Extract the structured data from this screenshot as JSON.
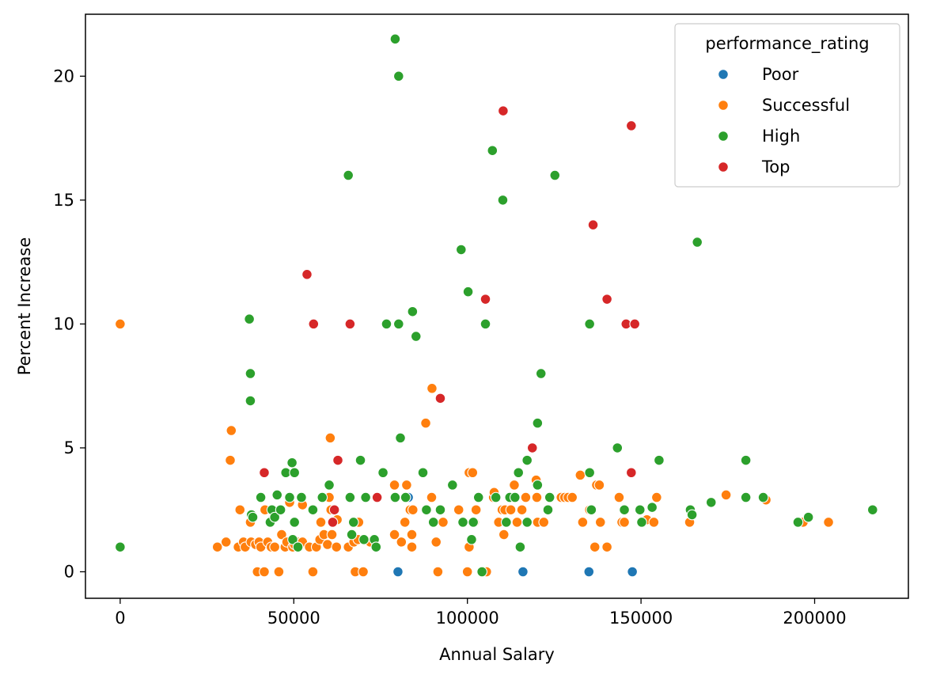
{
  "chart_data": {
    "type": "scatter",
    "title": "",
    "xlabel": "Annual Salary",
    "ylabel": "Percent Increase",
    "xlim": [
      -10000,
      227000
    ],
    "ylim": [
      -1.07,
      22.5
    ],
    "xticks": [
      0,
      50000,
      100000,
      150000,
      200000
    ],
    "yticks": [
      0,
      5,
      10,
      15,
      20
    ],
    "grid": false,
    "legend": {
      "title": "performance_rating",
      "placement": "top-right"
    },
    "series": [
      {
        "name": "Poor",
        "color": "#1f77b4",
        "points": [
          [
            80000,
            0
          ],
          [
            83000,
            3
          ],
          [
            116000,
            0
          ],
          [
            135000,
            0
          ],
          [
            147500,
            0
          ]
        ]
      },
      {
        "name": "Successful",
        "color": "#ff7f0e",
        "points": [
          [
            0,
            10
          ],
          [
            28000,
            1
          ],
          [
            30500,
            1.2
          ],
          [
            32000,
            5.7
          ],
          [
            31700,
            4.5
          ],
          [
            34500,
            2.5
          ],
          [
            34000,
            1
          ],
          [
            35500,
            1.2
          ],
          [
            36000,
            1
          ],
          [
            37500,
            2
          ],
          [
            37700,
            1.2
          ],
          [
            39000,
            1.1
          ],
          [
            39500,
            0
          ],
          [
            40000,
            1.2
          ],
          [
            40500,
            1
          ],
          [
            41500,
            0
          ],
          [
            41700,
            2.5
          ],
          [
            42500,
            1.2
          ],
          [
            43500,
            1
          ],
          [
            44500,
            1
          ],
          [
            45700,
            0
          ],
          [
            46500,
            1.5
          ],
          [
            47500,
            1
          ],
          [
            48000,
            1.2
          ],
          [
            48800,
            2.8
          ],
          [
            49700,
            1
          ],
          [
            50200,
            1.1
          ],
          [
            51000,
            1.2
          ],
          [
            52500,
            1.2
          ],
          [
            52500,
            2.7
          ],
          [
            54500,
            1
          ],
          [
            55500,
            0
          ],
          [
            56500,
            1
          ],
          [
            57500,
            1.3
          ],
          [
            57800,
            2
          ],
          [
            58700,
            1.5
          ],
          [
            59700,
            1.1
          ],
          [
            60200,
            3
          ],
          [
            60500,
            5.4
          ],
          [
            60700,
            2.5
          ],
          [
            61000,
            1.5
          ],
          [
            62300,
            1
          ],
          [
            62500,
            2.1
          ],
          [
            65700,
            1
          ],
          [
            67300,
            1.2
          ],
          [
            67700,
            0
          ],
          [
            68500,
            1.3
          ],
          [
            68700,
            2
          ],
          [
            70000,
            0
          ],
          [
            72000,
            1.2
          ],
          [
            79000,
            3.5
          ],
          [
            79000,
            1.5
          ],
          [
            81000,
            1.2
          ],
          [
            82000,
            2
          ],
          [
            82500,
            3.5
          ],
          [
            83500,
            2.5
          ],
          [
            84000,
            1.5
          ],
          [
            84300,
            2.5
          ],
          [
            84000,
            1
          ],
          [
            88000,
            6
          ],
          [
            89700,
            3
          ],
          [
            89800,
            7.4
          ],
          [
            91000,
            1.2
          ],
          [
            91500,
            0
          ],
          [
            93000,
            2
          ],
          [
            97500,
            2.5
          ],
          [
            100000,
            0
          ],
          [
            100500,
            1
          ],
          [
            100500,
            4
          ],
          [
            101500,
            4
          ],
          [
            102000,
            2
          ],
          [
            102500,
            2.5
          ],
          [
            104500,
            0
          ],
          [
            105500,
            0
          ],
          [
            107500,
            3
          ],
          [
            107700,
            3.2
          ],
          [
            109000,
            2
          ],
          [
            110000,
            2.5
          ],
          [
            110500,
            1.5
          ],
          [
            110800,
            2.5
          ],
          [
            112500,
            2.5
          ],
          [
            113500,
            3.5
          ],
          [
            114300,
            2
          ],
          [
            115700,
            2.5
          ],
          [
            116800,
            3
          ],
          [
            119800,
            3.7
          ],
          [
            120000,
            3
          ],
          [
            120200,
            2
          ],
          [
            122000,
            2
          ],
          [
            127000,
            3
          ],
          [
            128000,
            3
          ],
          [
            129000,
            3
          ],
          [
            130200,
            3
          ],
          [
            132500,
            3.9
          ],
          [
            133200,
            2
          ],
          [
            135200,
            2.5
          ],
          [
            136700,
            1
          ],
          [
            137200,
            3.5
          ],
          [
            138000,
            3.5
          ],
          [
            138300,
            2
          ],
          [
            140200,
            1
          ],
          [
            143700,
            3
          ],
          [
            144500,
            2
          ],
          [
            145200,
            2
          ],
          [
            150300,
            2
          ],
          [
            151700,
            2.1
          ],
          [
            153700,
            2
          ],
          [
            154500,
            3
          ],
          [
            164000,
            2
          ],
          [
            174500,
            3.1
          ],
          [
            186000,
            2.9
          ],
          [
            196700,
            2
          ],
          [
            204000,
            2
          ]
        ]
      },
      {
        "name": "High",
        "color": "#2ca02c",
        "points": [
          [
            0,
            1
          ],
          [
            37200,
            10.2
          ],
          [
            37500,
            8
          ],
          [
            37500,
            6.9
          ],
          [
            37800,
            2.3
          ],
          [
            38200,
            2.2
          ],
          [
            40500,
            3
          ],
          [
            43200,
            2
          ],
          [
            43700,
            2.5
          ],
          [
            44500,
            2.2
          ],
          [
            45200,
            3.1
          ],
          [
            46200,
            2.5
          ],
          [
            47700,
            4
          ],
          [
            48800,
            3
          ],
          [
            49500,
            4.4
          ],
          [
            49700,
            1.3
          ],
          [
            50200,
            4
          ],
          [
            50200,
            2
          ],
          [
            51200,
            1
          ],
          [
            52200,
            3
          ],
          [
            55500,
            2.5
          ],
          [
            58200,
            3
          ],
          [
            60200,
            3.5
          ],
          [
            65700,
            16
          ],
          [
            66200,
            3
          ],
          [
            66700,
            1.5
          ],
          [
            67200,
            2
          ],
          [
            69200,
            4.5
          ],
          [
            70200,
            1.3
          ],
          [
            70700,
            3
          ],
          [
            73200,
            1.3
          ],
          [
            73700,
            1
          ],
          [
            75700,
            4
          ],
          [
            76700,
            10
          ],
          [
            79200,
            21.5
          ],
          [
            79200,
            3
          ],
          [
            80200,
            20
          ],
          [
            80200,
            10
          ],
          [
            80700,
            5.4
          ],
          [
            82200,
            3
          ],
          [
            84200,
            10.5
          ],
          [
            85200,
            9.5
          ],
          [
            87200,
            4
          ],
          [
            88200,
            2.5
          ],
          [
            90200,
            2
          ],
          [
            92200,
            2.5
          ],
          [
            95700,
            3.5
          ],
          [
            98200,
            13
          ],
          [
            98700,
            2
          ],
          [
            100200,
            11.3
          ],
          [
            101200,
            1.3
          ],
          [
            101700,
            2
          ],
          [
            103200,
            3
          ],
          [
            104200,
            0
          ],
          [
            105200,
            10
          ],
          [
            107200,
            17
          ],
          [
            108200,
            3
          ],
          [
            110200,
            15
          ],
          [
            111200,
            2
          ],
          [
            112200,
            3
          ],
          [
            113700,
            3
          ],
          [
            114700,
            4
          ],
          [
            115200,
            1
          ],
          [
            117200,
            2
          ],
          [
            117200,
            4.5
          ],
          [
            120200,
            3.5
          ],
          [
            120200,
            6
          ],
          [
            121200,
            8
          ],
          [
            123200,
            2.5
          ],
          [
            123700,
            3
          ],
          [
            125200,
            16
          ],
          [
            135200,
            10
          ],
          [
            135200,
            4
          ],
          [
            135700,
            2.5
          ],
          [
            143200,
            5
          ],
          [
            145200,
            2.5
          ],
          [
            149700,
            2.5
          ],
          [
            150200,
            2
          ],
          [
            153200,
            2.6
          ],
          [
            155200,
            4.5
          ],
          [
            164200,
            2.5
          ],
          [
            164700,
            2.3
          ],
          [
            166200,
            13.3
          ],
          [
            170200,
            2.8
          ],
          [
            180200,
            4.5
          ],
          [
            180200,
            3
          ],
          [
            185200,
            3
          ],
          [
            195200,
            2
          ],
          [
            198200,
            2.2
          ],
          [
            216700,
            2.5
          ]
        ]
      },
      {
        "name": "Top",
        "color": "#d62728",
        "points": [
          [
            41500,
            4
          ],
          [
            53800,
            12
          ],
          [
            55700,
            10
          ],
          [
            61200,
            2
          ],
          [
            61700,
            2.5
          ],
          [
            62700,
            4.5
          ],
          [
            66200,
            10
          ],
          [
            74000,
            3
          ],
          [
            92200,
            7
          ],
          [
            105200,
            11
          ],
          [
            110300,
            18.6
          ],
          [
            118700,
            5
          ],
          [
            136200,
            14
          ],
          [
            140200,
            11
          ],
          [
            145700,
            10
          ],
          [
            147200,
            18
          ],
          [
            147200,
            4
          ],
          [
            148200,
            10
          ]
        ]
      }
    ]
  }
}
